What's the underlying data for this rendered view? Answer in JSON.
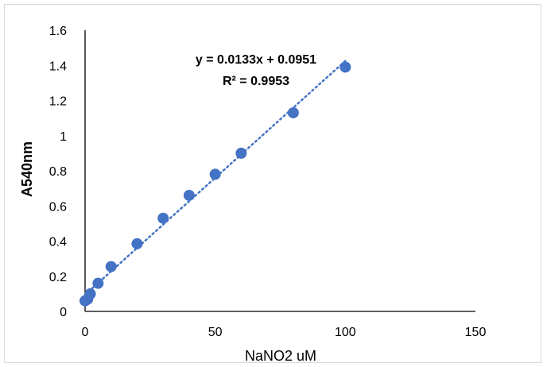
{
  "chart_data": {
    "type": "scatter",
    "xlabel": "NaNO2 uM",
    "ylabel": "A540nm",
    "xlim": [
      0,
      150
    ],
    "ylim": [
      0,
      1.6
    ],
    "x_ticks": [
      "0",
      "50",
      "100",
      "150"
    ],
    "y_ticks": [
      "0",
      "0.2",
      "0.4",
      "0.6",
      "0.8",
      "1",
      "1.2",
      "1.4",
      "1.6"
    ],
    "grid": false,
    "legend": "none",
    "series": [
      {
        "x": [
          0,
          1,
          2,
          5,
          10,
          20,
          30,
          40,
          50,
          60,
          80,
          100
        ],
        "y": [
          0.06,
          0.07,
          0.1,
          0.16,
          0.255,
          0.385,
          0.53,
          0.66,
          0.78,
          0.9,
          1.13,
          1.39
        ]
      }
    ],
    "trendline": {
      "type": "linear",
      "slope": 0.0133,
      "intercept": 0.0951,
      "style": "dotted"
    },
    "annotations": {
      "equation": "y = 0.0133x + 0.0951",
      "r_squared": "R² = 0.9953"
    },
    "colors": {
      "marker": "#4472C4",
      "trendline": "#4472C4",
      "axis": "#000000"
    }
  }
}
